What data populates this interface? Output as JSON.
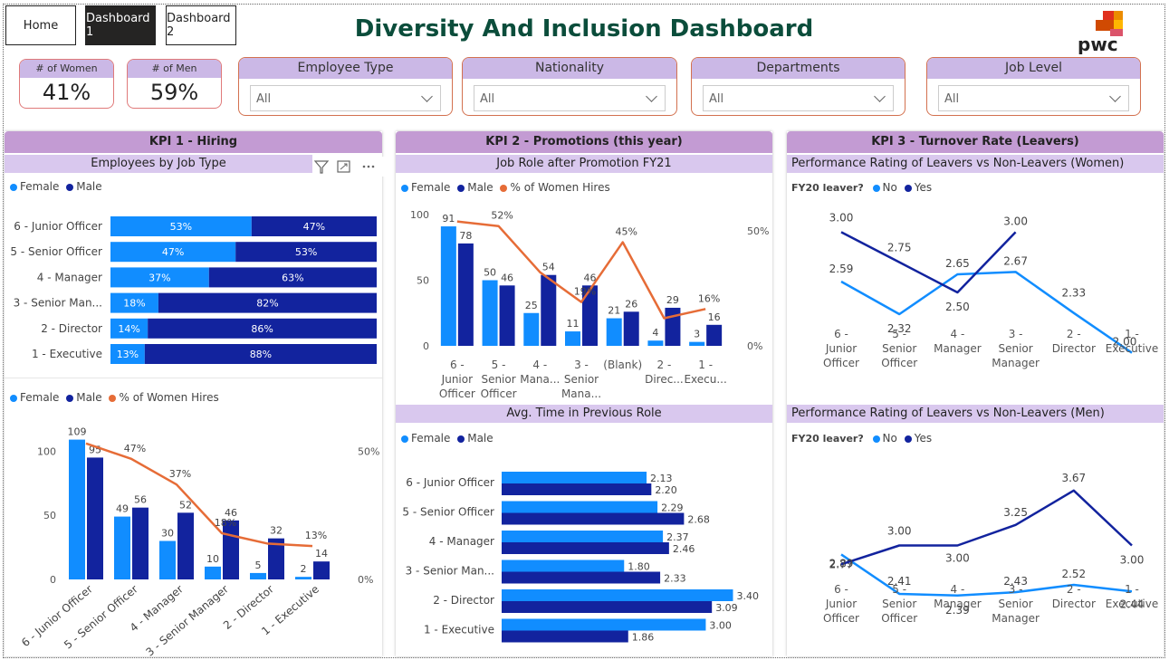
{
  "nav": {
    "home": "Home",
    "dash1": "Dashboard 1",
    "dash2": "Dashboard 2"
  },
  "title": "Diversity And Inclusion Dashboard",
  "logo_text": "pwc",
  "cards": {
    "women": {
      "label": "# of Women",
      "value": "41%"
    },
    "men": {
      "label": "# of Men",
      "value": "59%"
    }
  },
  "slicers": [
    {
      "label": "Employee Type",
      "value": "All"
    },
    {
      "label": "Nationality",
      "value": "All"
    },
    {
      "label": "Departments",
      "value": "All"
    },
    {
      "label": "Job Level",
      "value": "All"
    }
  ],
  "colors": {
    "female": "#118dff",
    "male": "#12239e",
    "women_hires": "#e66c37",
    "header": "#c39bd3",
    "subheader": "#d9c8ee",
    "title": "#0b4d3b"
  },
  "kpi1": {
    "header": "KPI 1 - Hiring",
    "chart1_title": "Employees by Job Type",
    "legend": {
      "female": "Female",
      "male": "Male",
      "hires": "% of Women Hires"
    }
  },
  "kpi2": {
    "header": "KPI 2 - Promotions (this year)",
    "chart1_title": "Job Role after Promotion FY21",
    "chart2_title": "Avg. Time in Previous Role",
    "legend": {
      "female": "Female",
      "male": "Male",
      "hires": "% of Women Hires"
    }
  },
  "kpi3": {
    "header": "KPI 3 - Turnover Rate (Leavers)",
    "chart1_title": "Performance Rating of Leavers vs Non-Leavers (Women)",
    "chart2_title": "Performance Rating of Leavers vs Non-Leavers (Men)",
    "legend": {
      "title": "FY20 leaver?",
      "no": "No",
      "yes": "Yes"
    }
  },
  "chart_data": [
    {
      "type": "bar",
      "orientation": "horizontal-100%-stacked",
      "categories": [
        "6 - Junior Officer",
        "5 - Senior Officer",
        "4 - Manager",
        "3 - Senior Man...",
        "2 - Director",
        "1 - Executive"
      ],
      "series": [
        {
          "name": "Female",
          "values": [
            53,
            47,
            37,
            18,
            14,
            13
          ],
          "labels": [
            "53%",
            "47%",
            "37%",
            "18%",
            "14%",
            "13%"
          ]
        },
        {
          "name": "Male",
          "values": [
            47,
            53,
            63,
            82,
            86,
            88
          ],
          "labels": [
            "47%",
            "53%",
            "63%",
            "82%",
            "86%",
            "88%"
          ]
        }
      ]
    },
    {
      "type": "bar",
      "orientation": "vertical-clustered-with-line",
      "categories": [
        "6 - Junior Officer",
        "5 - Senior Officer",
        "4 - Manager",
        "3 - Senior Manager",
        "2 - Director",
        "1 - Executive"
      ],
      "series": [
        {
          "name": "Female",
          "values": [
            109,
            49,
            30,
            10,
            5,
            2
          ]
        },
        {
          "name": "Male",
          "values": [
            95,
            56,
            52,
            46,
            32,
            14
          ]
        }
      ],
      "line": {
        "name": "% of Women Hires",
        "values": [
          53,
          47,
          37,
          18,
          14,
          13
        ],
        "labels": [
          "",
          "47%",
          "37%",
          "18%",
          "",
          "13%"
        ]
      },
      "y_ticks": [
        "100",
        "50",
        "0"
      ],
      "y2_ticks": [
        "50%",
        "0%"
      ],
      "ylim": [
        0,
        120
      ],
      "y2lim": [
        0,
        60
      ]
    },
    {
      "type": "bar",
      "orientation": "vertical-clustered-with-line",
      "categories": [
        "6 - Junior Officer",
        "5 - Senior Officer",
        "4 - Mana...",
        "3 - Senior Mana...",
        "(Blank)",
        "2 - Direc...",
        "1 - Execu..."
      ],
      "series": [
        {
          "name": "Female",
          "values": [
            91,
            50,
            25,
            11,
            21,
            4,
            3
          ]
        },
        {
          "name": "Male",
          "values": [
            78,
            46,
            54,
            46,
            26,
            29,
            16
          ]
        }
      ],
      "line": {
        "name": "% of Women Hires",
        "values": [
          54,
          52,
          32,
          19,
          45,
          12,
          16
        ],
        "labels": [
          "",
          "52%",
          "",
          "19%",
          "45%",
          "",
          "16%"
        ]
      },
      "y_ticks": [
        "100",
        "50",
        "0"
      ],
      "y2_ticks": [
        "50%",
        "0%"
      ],
      "ylim": [
        0,
        100
      ],
      "y2lim": [
        0,
        57
      ]
    },
    {
      "type": "bar",
      "orientation": "horizontal-clustered",
      "categories": [
        "6 - Junior Officer",
        "5 - Senior Officer",
        "4 - Manager",
        "3 - Senior Man...",
        "2 - Director",
        "1 - Executive"
      ],
      "series": [
        {
          "name": "Female",
          "values": [
            2.13,
            2.29,
            2.37,
            1.8,
            3.4,
            3.0
          ],
          "labels": [
            "2.13",
            "2.29",
            "2.37",
            "1.80",
            "3.40",
            "3.00"
          ]
        },
        {
          "name": "Male",
          "values": [
            2.2,
            2.68,
            2.46,
            2.33,
            3.09,
            1.86
          ],
          "labels": [
            "2.20",
            "2.68",
            "2.46",
            "2.33",
            "3.09",
            "1.86"
          ]
        }
      ],
      "xlim": [
        0,
        3.5
      ]
    },
    {
      "type": "line",
      "categories": [
        "6 - Junior Officer",
        "5 - Senior Officer",
        "4 - Manager",
        "3 - Senior Manager",
        "2 - Director",
        "1 - Executive"
      ],
      "series": [
        {
          "name": "No",
          "values": [
            2.59,
            2.32,
            2.65,
            2.67,
            2.33,
            2.0
          ],
          "labels": [
            "2.59",
            "2.32",
            "2.65",
            "2.67",
            "2.33",
            "2.00"
          ]
        },
        {
          "name": "Yes",
          "values": [
            3.0,
            2.75,
            2.5,
            3.0,
            null,
            null
          ],
          "labels": [
            "3.00",
            "2.75",
            "2.50",
            "3.00",
            "",
            ""
          ]
        }
      ],
      "ylim": [
        1.9,
        3.1
      ]
    },
    {
      "type": "line",
      "categories": [
        "6 - Junior Officer",
        "5 - Senior Officer",
        "4 - Manager",
        "3 - Senior Manager",
        "2 - Director",
        "1 - Executive"
      ],
      "series": [
        {
          "name": "No",
          "values": [
            2.89,
            2.41,
            2.39,
            2.43,
            2.52,
            2.44
          ],
          "labels": [
            "2.89",
            "2.41",
            "2.39",
            "2.43",
            "2.52",
            "2.44"
          ]
        },
        {
          "name": "Yes",
          "values": [
            2.77,
            3.0,
            3.0,
            3.25,
            3.67,
            3.0
          ],
          "labels": [
            "2.77",
            "3.00",
            "3.00",
            "3.25",
            "3.67",
            "3.00"
          ]
        }
      ],
      "ylim": [
        2.2,
        3.8
      ]
    }
  ]
}
